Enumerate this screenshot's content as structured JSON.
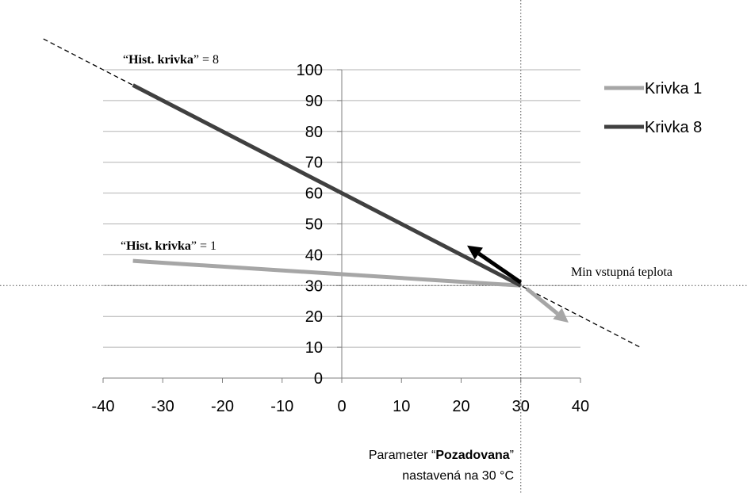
{
  "chart_data": {
    "type": "line",
    "xlim": [
      -40,
      40
    ],
    "ylim": [
      0,
      100
    ],
    "x_ticks": [
      -40,
      -30,
      -20,
      -10,
      0,
      10,
      20,
      30,
      40
    ],
    "y_ticks": [
      0,
      10,
      20,
      30,
      40,
      50,
      60,
      70,
      80,
      90,
      100
    ],
    "grid": "horizontal",
    "legend_position": "right",
    "series": [
      {
        "name": "Krivka 1",
        "color": "#a6a6a6",
        "x": [
          -35,
          30
        ],
        "y": [
          38,
          30
        ]
      },
      {
        "name": "Krivka 8",
        "color": "#404040",
        "x": [
          -35,
          30
        ],
        "y": [
          95,
          30
        ]
      }
    ],
    "extension_line": {
      "x": [
        -50,
        50
      ],
      "y": [
        110,
        10
      ],
      "style": "dashed"
    },
    "reference_lines": {
      "vertical_x": 30,
      "horizontal_y": 30
    },
    "arrows": [
      {
        "color": "#000000",
        "from": [
          30,
          31
        ],
        "to": [
          21,
          43
        ]
      },
      {
        "color": "#a6a6a6",
        "from": [
          31,
          29
        ],
        "to": [
          38,
          18
        ]
      }
    ],
    "annotations": {
      "curve8": {
        "open": "“",
        "bold": "Hist. krivka",
        "rest": "” = 8"
      },
      "curve1": {
        "open": "“",
        "bold": "Hist. krivka",
        "rest": "” = 1"
      },
      "min_temp": "Min vstupná teplota",
      "param_line1_pre": "Parameter “",
      "param_line1_bold": "Pozadovana",
      "param_line1_post": "”",
      "param_line2": "nastavená na 30 °C"
    }
  }
}
